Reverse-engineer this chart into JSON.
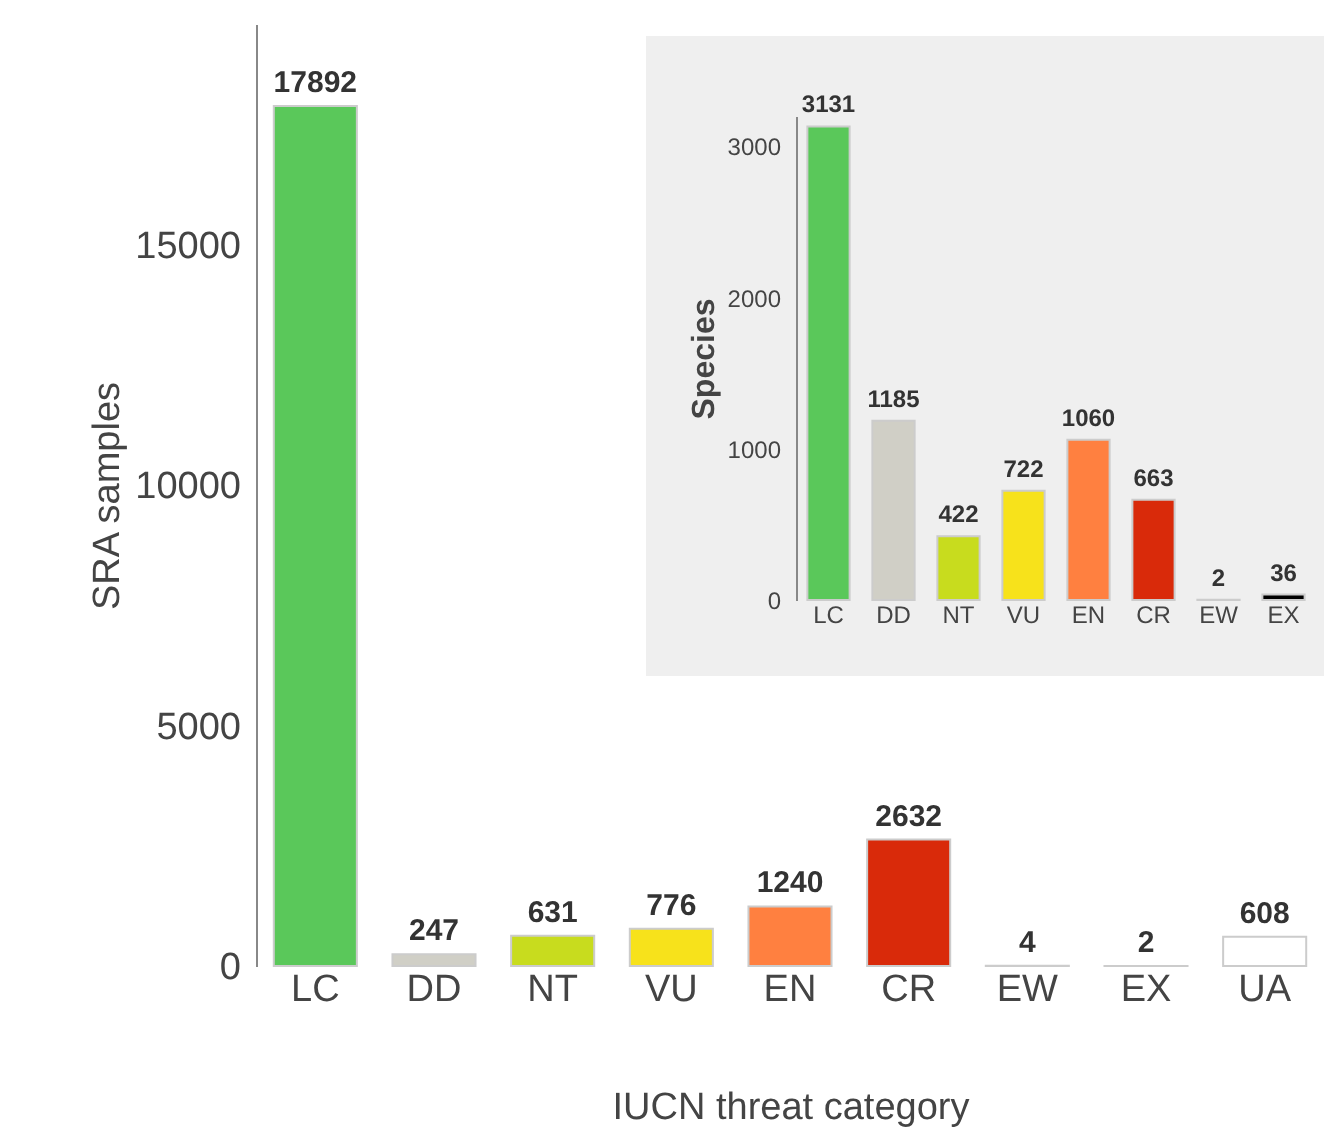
{
  "chart_data": [
    {
      "type": "bar",
      "ylabel": "SRA samples",
      "xlabel": "IUCN threat category",
      "categories": [
        "LC",
        "DD",
        "NT",
        "VU",
        "EN",
        "CR",
        "EW",
        "EX",
        "UA"
      ],
      "values": [
        17892,
        247,
        631,
        776,
        1240,
        2632,
        4,
        2,
        608
      ],
      "colors": [
        "#5ac85a",
        "#d0cfc6",
        "#c8dc1e",
        "#f7e21b",
        "#ff8040",
        "#d92a0a",
        "#000000",
        "#000000",
        "#ffffff"
      ],
      "ylim": [
        0,
        19600
      ],
      "yticks": [
        0,
        5000,
        10000,
        15000
      ],
      "data_labels": true,
      "grid": false
    },
    {
      "type": "bar",
      "ylabel": "Species",
      "categories": [
        "LC",
        "DD",
        "NT",
        "VU",
        "EN",
        "CR",
        "EW",
        "EX"
      ],
      "values": [
        3131,
        1185,
        422,
        722,
        1060,
        663,
        2,
        36
      ],
      "colors": [
        "#5ac85a",
        "#d0cfc6",
        "#c8dc1e",
        "#f7e21b",
        "#ff8040",
        "#d92a0a",
        "#000000",
        "#000000"
      ],
      "ylim": [
        0,
        3200
      ],
      "yticks": [
        0,
        1000,
        2000,
        3000
      ],
      "data_labels": true,
      "grid": false
    }
  ]
}
